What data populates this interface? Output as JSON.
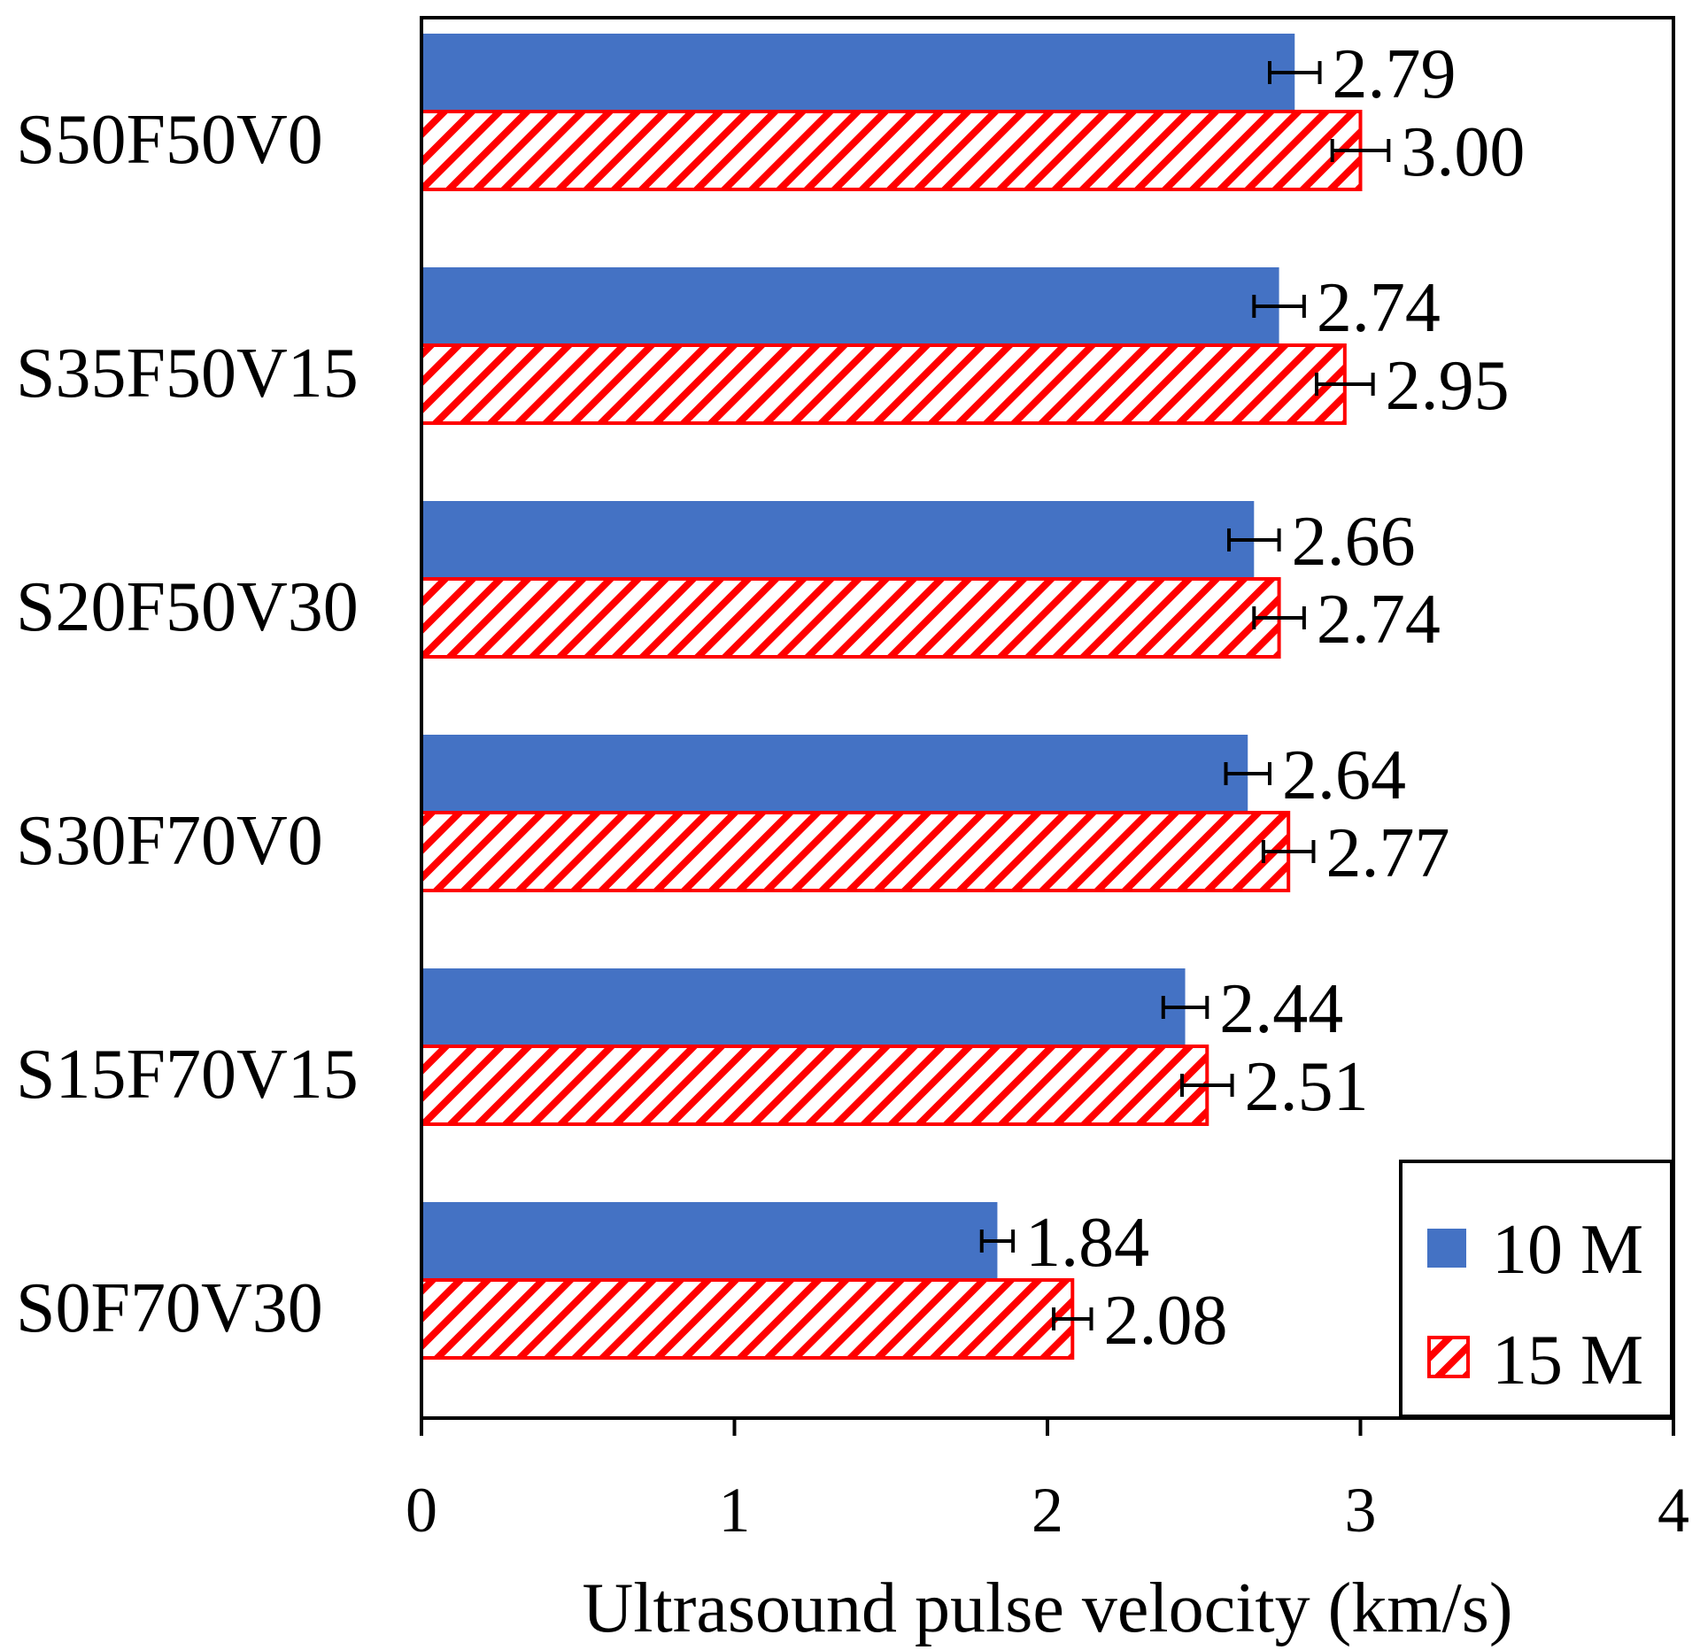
{
  "chart_data": {
    "type": "bar",
    "orientation": "horizontal",
    "categories": [
      "S50F50V0",
      "S35F50V15",
      "S20F50V30",
      "S30F70V0",
      "S15F70V15",
      "S0F70V30"
    ],
    "series": [
      {
        "name": "10 M",
        "values": [
          2.79,
          2.74,
          2.66,
          2.64,
          2.44,
          1.84
        ],
        "labels": [
          "2.79",
          "2.74",
          "2.66",
          "2.64",
          "2.44",
          "1.84"
        ],
        "errors": [
          0.08,
          0.08,
          0.08,
          0.07,
          0.07,
          0.05
        ],
        "color": "#4472C4",
        "pattern": "solid"
      },
      {
        "name": "15 M",
        "values": [
          3.0,
          2.95,
          2.74,
          2.77,
          2.51,
          2.08
        ],
        "labels": [
          "3.00",
          "2.95",
          "2.74",
          "2.77",
          "2.51",
          "2.08"
        ],
        "errors": [
          0.09,
          0.09,
          0.08,
          0.08,
          0.08,
          0.06
        ],
        "color": "#FF0000",
        "pattern": "diagonal-hatch"
      }
    ],
    "xlabel": "Ultrasound pulse velocity (km/s)",
    "ylabel": "",
    "xlim": [
      0,
      4
    ],
    "xticks": [
      "0",
      "1",
      "2",
      "3",
      "4"
    ],
    "grid": false,
    "legend_position": "bottom-right"
  }
}
